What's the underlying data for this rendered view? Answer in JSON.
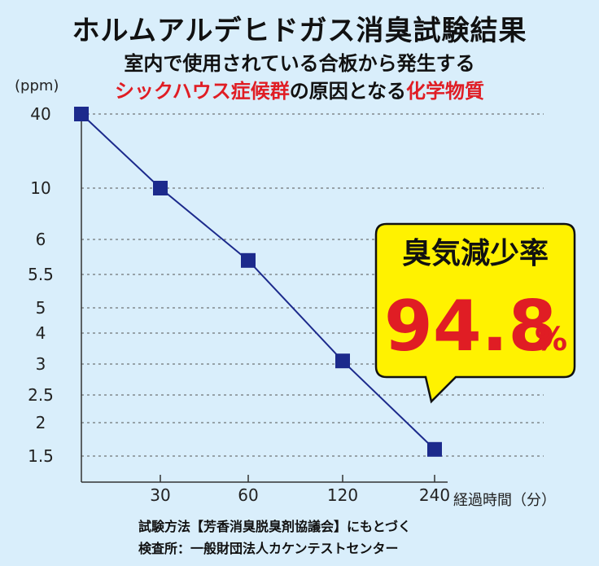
{
  "header": {
    "title": "ホルムアルデヒドガス消臭試験結果",
    "subtitle_line1": "室内で使用されている合板から発生する",
    "subtitle_line2_red1": "シックハウス症候群",
    "subtitle_line2_mid": "の原因となる",
    "subtitle_line2_red2": "化学物質"
  },
  "callout": {
    "label": "臭気減少率",
    "value": "94.8",
    "unit": "%"
  },
  "footer": {
    "line1": "試験方法【芳香消臭脱臭剤協議会】にもとづく",
    "line2": "検査所：一般財団法人カケンテストセンター"
  },
  "colors": {
    "background": "#d9eefb",
    "series": "#1c2a8c",
    "accent_red": "#e01d24",
    "callout_fill": "#fff200"
  },
  "chart_data": {
    "type": "line",
    "ylabel": "(ppm)",
    "xlabel": "経過時間（分）",
    "x": [
      0,
      30,
      60,
      120,
      240
    ],
    "x_tick_labels": [
      "30",
      "60",
      "120",
      "240"
    ],
    "y_tick_labels": [
      "40",
      "10",
      "6",
      "5.5",
      "5",
      "4",
      "3",
      "2.5",
      "2",
      "1.5"
    ],
    "series": [
      {
        "values": [
          40,
          10,
          5.7,
          3.1,
          1.6
        ]
      }
    ],
    "grid": "horizontal dashed",
    "scale": "non-linear y axis"
  }
}
